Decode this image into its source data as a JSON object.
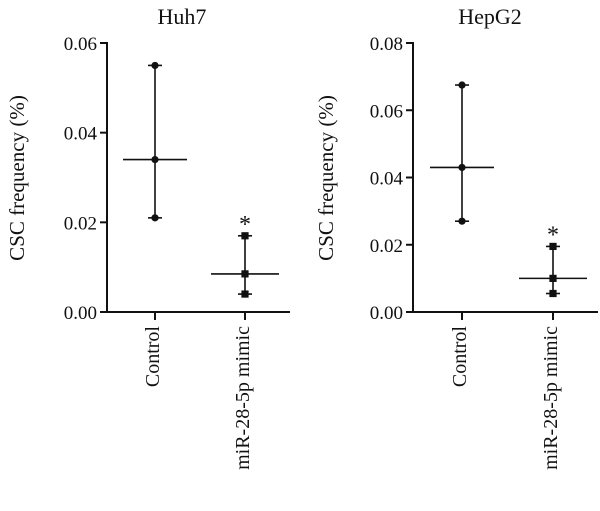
{
  "chart_data": [
    {
      "type": "scatter",
      "title": "Huh7",
      "ylabel": "CSC frequency (%)",
      "categories": [
        "Control",
        "miR-28-5p mimic"
      ],
      "ylim": [
        0,
        0.06
      ],
      "yticks": [
        "0.00",
        "0.02",
        "0.04",
        "0.06"
      ],
      "series": [
        {
          "category": "Control",
          "marker": "circle",
          "points": [
            0.055,
            0.034,
            0.021
          ],
          "median": 0.034,
          "range": [
            0.021,
            0.055
          ],
          "annotation": ""
        },
        {
          "category": "miR-28-5p mimic",
          "marker": "square",
          "points": [
            0.017,
            0.0085,
            0.004
          ],
          "median": 0.0085,
          "range": [
            0.004,
            0.017
          ],
          "annotation": "*"
        }
      ],
      "grid": false,
      "legend": "none"
    },
    {
      "type": "scatter",
      "title": "HepG2",
      "ylabel": "CSC frequency (%)",
      "categories": [
        "Control",
        "miR-28-5p mimic"
      ],
      "ylim": [
        0,
        0.08
      ],
      "yticks": [
        "0.00",
        "0.02",
        "0.04",
        "0.06",
        "0.08"
      ],
      "series": [
        {
          "category": "Control",
          "marker": "circle",
          "points": [
            0.0675,
            0.043,
            0.027
          ],
          "median": 0.043,
          "range": [
            0.027,
            0.0675
          ],
          "annotation": ""
        },
        {
          "category": "miR-28-5p mimic",
          "marker": "square",
          "points": [
            0.0195,
            0.01,
            0.0055
          ],
          "median": 0.01,
          "range": [
            0.0055,
            0.0195
          ],
          "annotation": "*"
        }
      ],
      "grid": false,
      "legend": "none"
    }
  ]
}
